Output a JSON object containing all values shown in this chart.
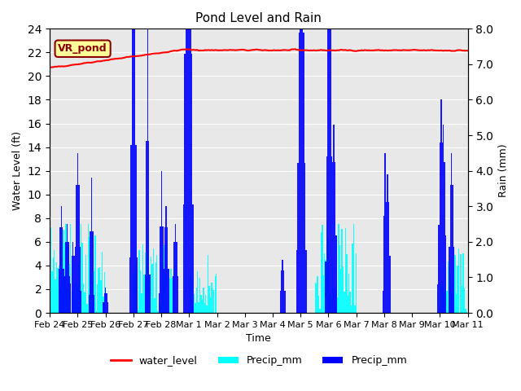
{
  "title": "Pond Level and Rain",
  "xlabel": "Time",
  "ylabel_left": "Water Level (ft)",
  "ylabel_right": "Rain (mm)",
  "ylim_left": [
    0,
    24
  ],
  "ylim_right": [
    0,
    8.0
  ],
  "yticks_left": [
    0,
    2,
    4,
    6,
    8,
    10,
    12,
    14,
    16,
    18,
    20,
    22,
    24
  ],
  "yticks_right": [
    0.0,
    1.0,
    2.0,
    3.0,
    4.0,
    5.0,
    6.0,
    7.0,
    8.0
  ],
  "annotation_text": "VR_pond",
  "annotation_color": "#8B0000",
  "annotation_bg": "#FFFF99",
  "water_level_color": "red",
  "precip_cyan_color": "cyan",
  "precip_blue_color": "blue",
  "legend_entries": [
    "water_level",
    "Precip_mm",
    "Precip_mm"
  ],
  "bg_color": "#E8E8E8"
}
